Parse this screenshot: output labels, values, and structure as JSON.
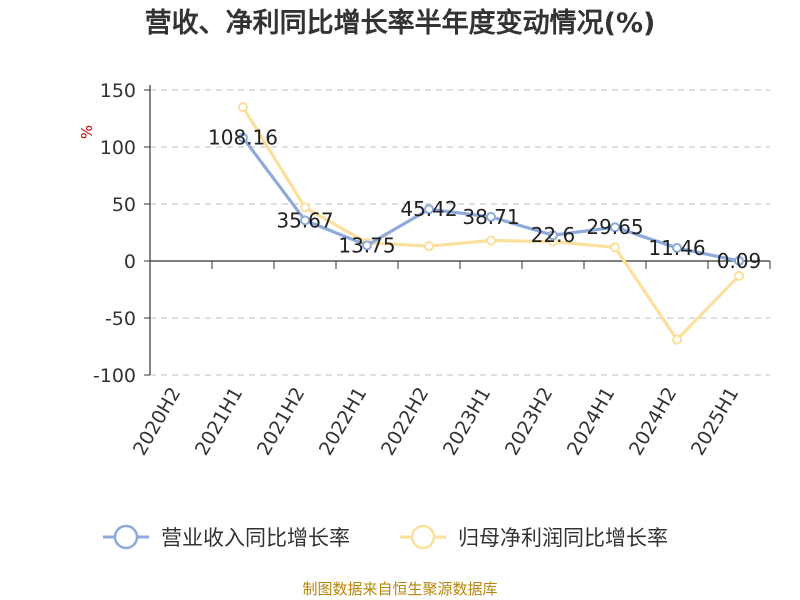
{
  "chart_data": {
    "type": "line",
    "title": "营收、净利同比增长率半年度变动情况(%)",
    "ylabel": "%",
    "xlabel": "",
    "categories": [
      "2020H2",
      "2021H1",
      "2021H2",
      "2022H1",
      "2022H2",
      "2023H1",
      "2023H2",
      "2024H1",
      "2024H2",
      "2025H1"
    ],
    "ylim": [
      -100,
      150
    ],
    "yticks": [
      150,
      100,
      50,
      0,
      -50,
      -100
    ],
    "grid": true,
    "legend_position": "bottom",
    "series": [
      {
        "name": "营业收入同比增长率",
        "color": "#8eaadb",
        "values": [
          null,
          108.16,
          35.67,
          13.75,
          45.42,
          38.71,
          22.6,
          29.65,
          11.46,
          0.09
        ],
        "labels": [
          "",
          "108.16",
          "35.67",
          "13.75",
          "45.42",
          "38.71",
          "22.6",
          "29.65",
          "11.46",
          "0.09"
        ]
      },
      {
        "name": "归母净利润同比增长率",
        "color": "#fbdf9c",
        "values": [
          null,
          135,
          47,
          16,
          13,
          18,
          17,
          12,
          -69,
          -13
        ]
      }
    ],
    "source": "制图数据来自恒生聚源数据库"
  }
}
